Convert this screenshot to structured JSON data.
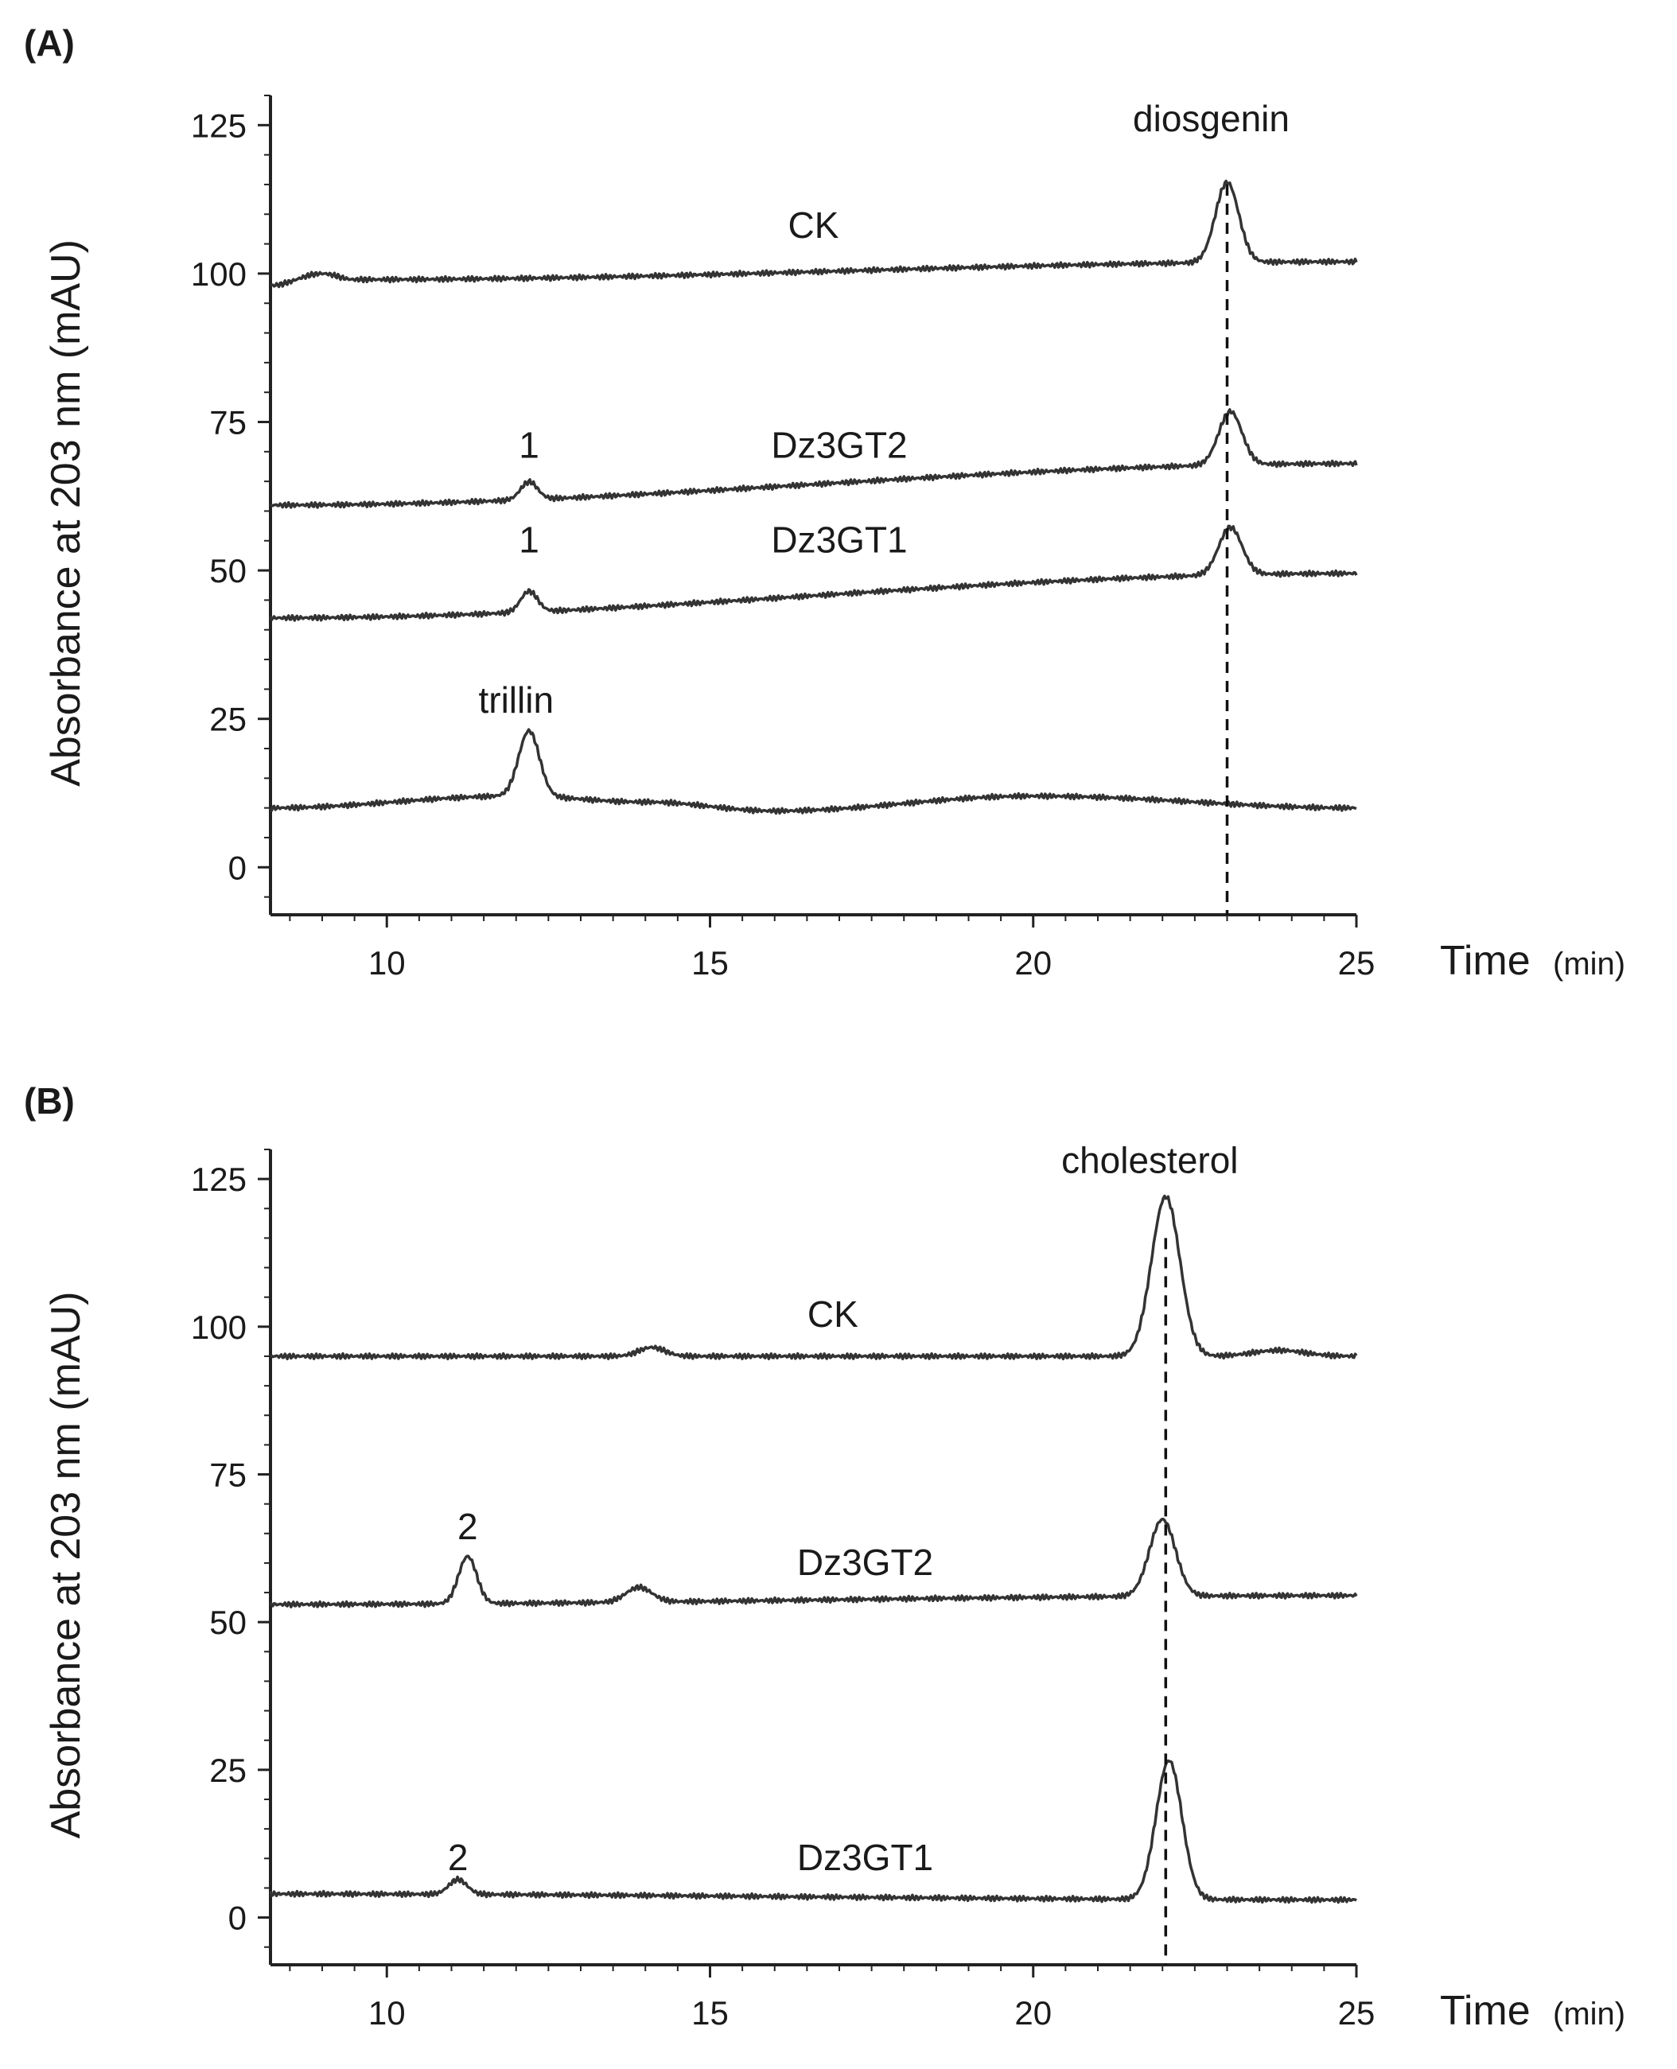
{
  "chart_data": [
    {
      "type": "line",
      "panel_label": "(A)",
      "ylabel": "Absorbance at 203 nm (mAU)",
      "xlabel": "Time",
      "xunit": "(min)",
      "xlim": [
        8.2,
        25
      ],
      "ylim": [
        -8,
        130
      ],
      "xticks": [
        10,
        15,
        20,
        25
      ],
      "yticks": [
        0,
        25,
        50,
        75,
        100,
        125
      ],
      "reference_line": {
        "x": 23.0,
        "label": "diosgenin",
        "y_label": 124
      },
      "series": [
        {
          "name": "CK",
          "baseline": [
            [
              8.2,
              98
            ],
            [
              9.0,
              100
            ],
            [
              9.5,
              99
            ],
            [
              25,
              102
            ]
          ],
          "peaks": [
            {
              "x": 23.0,
              "height": 13.5,
              "sigma": 0.18
            }
          ],
          "label": {
            "text": "CK",
            "x": 16.6,
            "y": 106
          }
        },
        {
          "name": "Dz3GT2",
          "baseline": [
            [
              8.2,
              61
            ],
            [
              25,
              68
            ]
          ],
          "peaks": [
            {
              "x": 12.2,
              "height": 3.0,
              "sigma": 0.13
            },
            {
              "x": 23.05,
              "height": 9.0,
              "sigma": 0.18
            }
          ],
          "label": {
            "text": "Dz3GT2",
            "x": 17.0,
            "y": 69
          },
          "peak_labels": [
            {
              "text": "1",
              "x": 12.2,
              "y": 69
            }
          ]
        },
        {
          "name": "Dz3GT1",
          "baseline": [
            [
              8.2,
              42
            ],
            [
              25,
              49.5
            ]
          ],
          "peaks": [
            {
              "x": 12.2,
              "height": 3.5,
              "sigma": 0.13
            },
            {
              "x": 23.05,
              "height": 8.0,
              "sigma": 0.18
            }
          ],
          "label": {
            "text": "Dz3GT1",
            "x": 17.0,
            "y": 53
          },
          "peak_labels": [
            {
              "text": "1",
              "x": 12.2,
              "y": 53
            }
          ]
        },
        {
          "name": "trillin",
          "baseline": [
            [
              8.2,
              10
            ],
            [
              12,
              12
            ],
            [
              14,
              11
            ],
            [
              16,
              9.5
            ],
            [
              20,
              12
            ],
            [
              25,
              10
            ]
          ],
          "peaks": [
            {
              "x": 12.2,
              "height": 11.0,
              "sigma": 0.16
            }
          ],
          "label": {
            "text": "trillin",
            "x": 12.0,
            "y": 26
          }
        }
      ]
    },
    {
      "type": "line",
      "panel_label": "(B)",
      "ylabel": "Absorbance at 203 nm (mAU)",
      "xlabel": "Time",
      "xunit": "(min)",
      "xlim": [
        8.2,
        25
      ],
      "ylim": [
        -8,
        130
      ],
      "xticks": [
        10,
        15,
        20,
        25
      ],
      "yticks": [
        0,
        25,
        50,
        75,
        100,
        125
      ],
      "reference_line": {
        "x": 22.05,
        "label": "cholesterol",
        "y_label": 126
      },
      "series": [
        {
          "name": "CK",
          "baseline": [
            [
              8.2,
              95
            ],
            [
              25,
              95
            ]
          ],
          "peaks": [
            {
              "x": 14.1,
              "height": 1.5,
              "sigma": 0.2
            },
            {
              "x": 22.05,
              "height": 27.0,
              "sigma": 0.22
            },
            {
              "x": 23.8,
              "height": 1.0,
              "sigma": 0.4
            }
          ],
          "label": {
            "text": "CK",
            "x": 16.9,
            "y": 100
          }
        },
        {
          "name": "Dz3GT2",
          "baseline": [
            [
              8.2,
              53
            ],
            [
              25,
              54.5
            ]
          ],
          "peaks": [
            {
              "x": 11.25,
              "height": 8.0,
              "sigma": 0.14
            },
            {
              "x": 13.9,
              "height": 2.5,
              "sigma": 0.2
            },
            {
              "x": 22.0,
              "height": 13.0,
              "sigma": 0.2
            }
          ],
          "label": {
            "text": "Dz3GT2",
            "x": 17.4,
            "y": 58
          },
          "peak_labels": [
            {
              "text": "2",
              "x": 11.25,
              "y": 64
            }
          ]
        },
        {
          "name": "Dz3GT1",
          "baseline": [
            [
              8.2,
              4
            ],
            [
              25,
              3
            ]
          ],
          "peaks": [
            {
              "x": 11.1,
              "height": 2.5,
              "sigma": 0.14
            },
            {
              "x": 22.1,
              "height": 23.5,
              "sigma": 0.2
            }
          ],
          "label": {
            "text": "Dz3GT1",
            "x": 17.4,
            "y": 8
          },
          "peak_labels": [
            {
              "text": "2",
              "x": 11.1,
              "y": 8
            }
          ]
        }
      ]
    }
  ]
}
